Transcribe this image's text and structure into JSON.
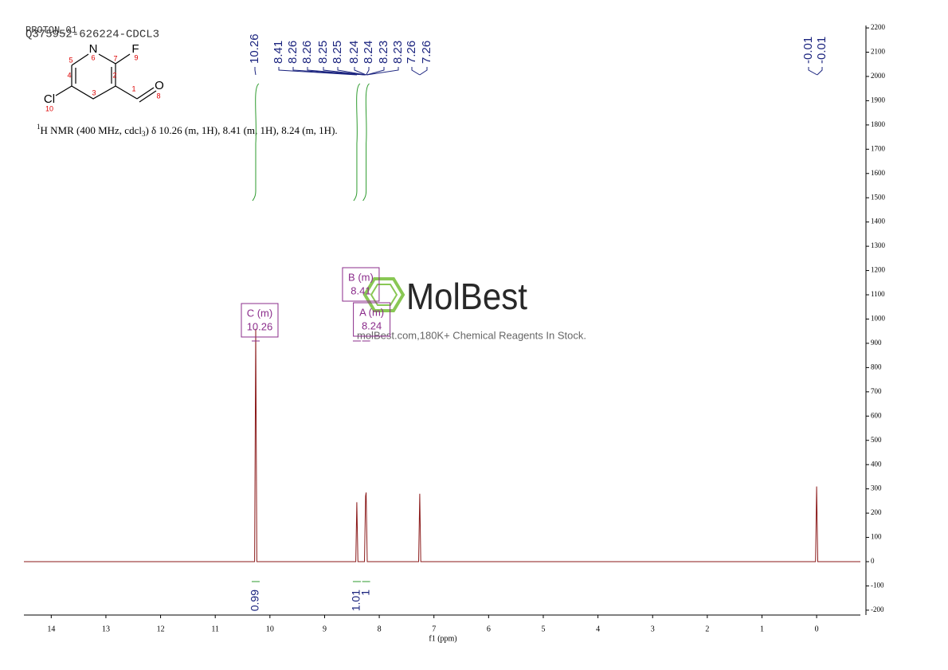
{
  "header": [
    "PROTON_01",
    "Q375952-626224-CDCL3"
  ],
  "structure": {
    "atoms": [
      "N",
      "F",
      "O",
      "Cl"
    ],
    "numbers": [
      "1",
      "2",
      "3",
      "4",
      "5",
      "6",
      "7",
      "8",
      "9",
      "10"
    ]
  },
  "description": [
    "1",
    "H NMR (400 MHz, cdcl",
    "3",
    ") δ 10.26 (m, 1H), 8.41 (m, 1H), 8.24 (m, 1H)."
  ],
  "watermark": {
    "brand": "MolBest",
    "tagline": "molBest.com,180K+ Chemical Reagents In Stock."
  },
  "chart_data": {
    "type": "spectrum",
    "x_label": "f1 (ppm)",
    "x": [
      14.5,
      10.28,
      10.26,
      10.24,
      8.43,
      8.41,
      8.39,
      8.27,
      8.25,
      8.24,
      8.22,
      7.28,
      7.26,
      7.24,
      0.02,
      0,
      -0.02,
      -0.8
    ],
    "values": [
      0,
      0,
      960,
      0,
      0,
      245,
      0,
      0,
      270,
      285,
      0,
      0,
      280,
      0,
      0,
      310,
      0,
      0
    ],
    "color": "#8b1a1a",
    "xlim": [
      14.5,
      -0.8
    ],
    "xticks": [
      14,
      13,
      12,
      11,
      10,
      9,
      8,
      7,
      6,
      5,
      4,
      3,
      2,
      1,
      0
    ],
    "ylim": [
      -220,
      2210
    ],
    "yticks": [
      -200,
      -100,
      0,
      100,
      200,
      300,
      400,
      500,
      600,
      700,
      800,
      900,
      1000,
      1100,
      1200,
      1300,
      1400,
      1500,
      1600,
      1700,
      1800,
      1900,
      2000,
      2100,
      2200
    ],
    "peak_labels": [
      10.26,
      8.41,
      8.26,
      8.26,
      8.25,
      8.25,
      8.24,
      8.24,
      8.23,
      8.23,
      7.26,
      7.26,
      -0.01,
      -0.01
    ],
    "integrals": [
      {
        "x": 10.26,
        "value": 0.99
      },
      {
        "x": 8.41,
        "value": 1.01
      },
      {
        "x": 8.24,
        "value": 1.0
      }
    ],
    "multiplets": [
      {
        "name": "C (m)",
        "x": 10.26
      },
      {
        "name": "B (m)",
        "x": 8.41
      },
      {
        "name": "A (m)",
        "x": 8.24
      }
    ]
  }
}
